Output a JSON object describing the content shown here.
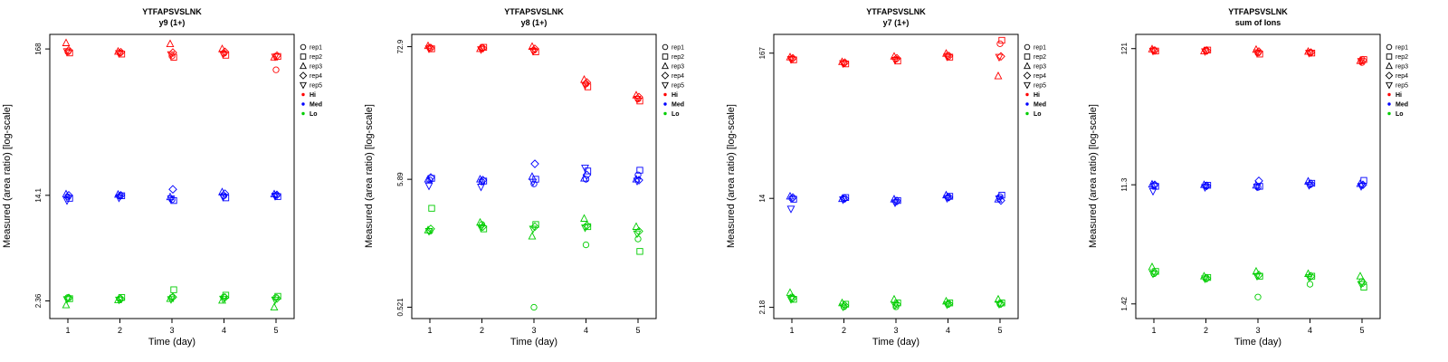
{
  "figure": {
    "ylabel": "Measured (area ratio) [log-scale]",
    "xlabel": "Time (day)"
  },
  "legend": {
    "reps": [
      {
        "label": "rep1",
        "shape": "circle"
      },
      {
        "label": "rep2",
        "shape": "square"
      },
      {
        "label": "rep3",
        "shape": "triangle-up"
      },
      {
        "label": "rep4",
        "shape": "diamond"
      },
      {
        "label": "rep5",
        "shape": "triangle-down"
      }
    ],
    "levels": [
      {
        "label": "Hi",
        "color": "#FF0000"
      },
      {
        "label": "Med",
        "color": "#0000FF"
      },
      {
        "label": "Lo",
        "color": "#00CD00"
      }
    ]
  },
  "chart_data": [
    {
      "type": "scatter",
      "title": "YTFAPSVSLNK",
      "subtitle": "y9 (1+)",
      "xlabel": "Time (day)",
      "ylabel": "Measured (area ratio) [log-scale]",
      "x": [
        1,
        2,
        3,
        4,
        5
      ],
      "yscale": "log",
      "ylim": [
        1.75,
        215
      ],
      "yticks": [
        {
          "value": 168,
          "label": "168"
        },
        {
          "value": 14.1,
          "label": "14.1"
        },
        {
          "value": 2.36,
          "label": "2.36"
        }
      ],
      "rep_shapes": [
        "circle",
        "square",
        "triangle-up",
        "diamond",
        "triangle-down"
      ],
      "series": [
        {
          "name": "Hi",
          "color": "#FF0000",
          "days": [
            [
              160,
              157,
              186,
              164,
              161
            ],
            [
              157,
              154,
              161,
              159,
              156
            ],
            [
              149,
              146,
              183,
              158,
              153
            ],
            [
              156,
              151,
              168,
              160,
              154
            ],
            [
              118,
              148,
              146,
              150,
              147
            ]
          ]
        },
        {
          "name": "Med",
          "color": "#0000FF",
          "days": [
            [
              13.7,
              13.4,
              14.4,
              14.1,
              12.9
            ],
            [
              13.9,
              14.0,
              14.3,
              14.1,
              13.5
            ],
            [
              13.1,
              12.9,
              13.7,
              15.6,
              13.3
            ],
            [
              14.0,
              13.5,
              14.9,
              14.5,
              13.7
            ],
            [
              14.1,
              13.8,
              14.4,
              14.2,
              13.9
            ]
          ]
        },
        {
          "name": "Lo",
          "color": "#00CD00",
          "days": [
            [
              2.5,
              2.45,
              2.2,
              2.48,
              2.42
            ],
            [
              2.45,
              2.5,
              2.4,
              2.44,
              2.4
            ],
            [
              2.5,
              2.85,
              2.45,
              2.52,
              2.42
            ],
            [
              2.52,
              2.6,
              2.38,
              2.5,
              2.44
            ],
            [
              2.5,
              2.55,
              2.12,
              2.46,
              2.4
            ]
          ]
        }
      ]
    },
    {
      "type": "scatter",
      "title": "YTFAPSVSLNK",
      "subtitle": "y8 (1+)",
      "xlabel": "Time (day)",
      "ylabel": "Measured (area ratio) [log-scale]",
      "x": [
        1,
        2,
        3,
        4,
        5
      ],
      "yscale": "log",
      "ylim": [
        0.42,
        92
      ],
      "yticks": [
        {
          "value": 72.9,
          "label": "72.9"
        },
        {
          "value": 5.89,
          "label": "5.89"
        },
        {
          "value": 0.521,
          "label": "0.521"
        }
      ],
      "rep_shapes": [
        "circle",
        "square",
        "triangle-up",
        "diamond",
        "triangle-down"
      ],
      "series": [
        {
          "name": "Hi",
          "color": "#FF0000",
          "days": [
            [
              72,
              70,
              74,
              71,
              70
            ],
            [
              71,
              72,
              70,
              71,
              69
            ],
            [
              68,
              66,
              73,
              70,
              67
            ],
            [
              36,
              34,
              39,
              37,
              35
            ],
            [
              27,
              26,
              29,
              28,
              27
            ]
          ]
        },
        {
          "name": "Med",
          "color": "#0000FF",
          "days": [
            [
              5.8,
              6.0,
              5.9,
              6.1,
              5.2
            ],
            [
              5.6,
              5.7,
              5.9,
              5.8,
              5.1
            ],
            [
              5.4,
              5.9,
              6.2,
              7.9,
              5.6
            ],
            [
              5.9,
              6.9,
              6.0,
              6.4,
              7.3
            ],
            [
              6.4,
              7.0,
              5.9,
              5.8,
              5.7
            ]
          ]
        },
        {
          "name": "Lo",
          "color": "#00CD00",
          "days": [
            [
              2.2,
              3.4,
              2.25,
              2.3,
              2.2
            ],
            [
              2.5,
              2.3,
              2.6,
              2.4,
              2.35
            ],
            [
              0.52,
              2.5,
              2.0,
              2.4,
              2.3
            ],
            [
              1.7,
              2.4,
              2.8,
              2.45,
              2.35
            ],
            [
              1.9,
              1.5,
              2.4,
              2.2,
              2.1
            ]
          ]
        }
      ]
    },
    {
      "type": "scatter",
      "title": "YTFAPSVSLNK",
      "subtitle": "y7 (1+)",
      "xlabel": "Time (day)",
      "ylabel": "Measured (area ratio) [log-scale]",
      "x": [
        1,
        2,
        3,
        4,
        5
      ],
      "yscale": "log",
      "ylim": [
        1.8,
        230
      ],
      "yticks": [
        {
          "value": 167,
          "label": "167"
        },
        {
          "value": 14,
          "label": "14"
        },
        {
          "value": 2.18,
          "label": "2.18"
        }
      ],
      "rep_shapes": [
        "circle",
        "square",
        "triangle-up",
        "diamond",
        "triangle-down"
      ],
      "series": [
        {
          "name": "Hi",
          "color": "#FF0000",
          "days": [
            [
              152,
              149,
              156,
              153,
              150
            ],
            [
              141,
              139,
              144,
              142,
              140
            ],
            [
              151,
              146,
              158,
              153,
              148
            ],
            [
              161,
              156,
              166,
              159,
              157
            ],
            [
              196,
              208,
              113,
              158,
              156
            ]
          ]
        },
        {
          "name": "Med",
          "color": "#0000FF",
          "days": [
            [
              14.0,
              13.8,
              14.5,
              14.2,
              11.7
            ],
            [
              13.8,
              14.2,
              13.9,
              14.0,
              13.7
            ],
            [
              13.2,
              13.5,
              13.8,
              13.4,
              13.0
            ],
            [
              14.2,
              14.5,
              14.8,
              14.3,
              14.0
            ],
            [
              14.4,
              14.8,
              13.8,
              13.5,
              13.9
            ]
          ]
        },
        {
          "name": "Lo",
          "color": "#00CD00",
          "days": [
            [
              2.6,
              2.5,
              2.8,
              2.55,
              2.5
            ],
            [
              2.2,
              2.3,
              2.35,
              2.25,
              2.2
            ],
            [
              2.2,
              2.35,
              2.5,
              2.3,
              2.25
            ],
            [
              2.3,
              2.35,
              2.42,
              2.32,
              2.28
            ],
            [
              2.3,
              2.35,
              2.5,
              2.32,
              2.3
            ]
          ]
        }
      ]
    },
    {
      "type": "scatter",
      "title": "YTFAPSVSLNK",
      "subtitle": "sum of Ions",
      "xlabel": "Time (day)",
      "ylabel": "Measured (area ratio) [log-scale]",
      "x": [
        1,
        2,
        3,
        4,
        5
      ],
      "yscale": "log",
      "ylim": [
        1.1,
        155
      ],
      "yticks": [
        {
          "value": 121,
          "label": "121"
        },
        {
          "value": 11.3,
          "label": "11.3"
        },
        {
          "value": 1.42,
          "label": "1.42"
        }
      ],
      "rep_shapes": [
        "circle",
        "square",
        "triangle-up",
        "diamond",
        "triangle-down"
      ],
      "series": [
        {
          "name": "Hi",
          "color": "#FF0000",
          "days": [
            [
              118,
              116,
              120,
              117,
              116
            ],
            [
              117,
              118,
              116,
              117,
              115
            ],
            [
              112,
              110,
              119,
              115,
              113
            ],
            [
              113,
              112,
              115,
              113,
              112
            ],
            [
              95,
              100,
              98,
              99,
              97
            ]
          ]
        },
        {
          "name": "Med",
          "color": "#0000FF",
          "days": [
            [
              11.2,
              11.0,
              11.4,
              11.3,
              10.1
            ],
            [
              11.0,
              11.2,
              11.3,
              11.1,
              10.8
            ],
            [
              10.8,
              11.0,
              11.2,
              12.1,
              10.9
            ],
            [
              11.3,
              11.6,
              12.0,
              11.5,
              11.2
            ],
            [
              11.2,
              12.2,
              11.5,
              11.3,
              11.0
            ]
          ]
        },
        {
          "name": "Lo",
          "color": "#00CD00",
          "days": [
            [
              2.4,
              2.5,
              2.7,
              2.45,
              2.4
            ],
            [
              2.2,
              2.25,
              2.3,
              2.22,
              2.2
            ],
            [
              1.6,
              2.3,
              2.5,
              2.35,
              2.3
            ],
            [
              2.0,
              2.3,
              2.4,
              2.3,
              2.25
            ],
            [
              2.1,
              1.9,
              2.3,
              2.05,
              2.0
            ]
          ]
        }
      ]
    }
  ]
}
